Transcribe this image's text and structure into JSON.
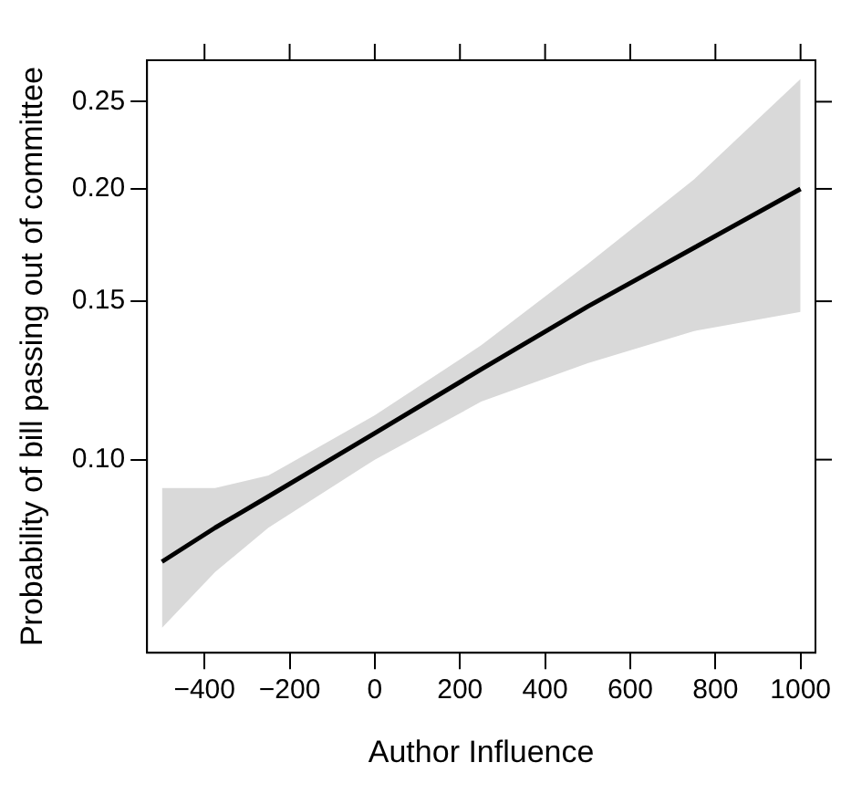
{
  "chart_data": {
    "type": "line",
    "xlabel": "Author Influence",
    "ylabel": "Probability of bill passing out of committee",
    "xlim": [
      -535,
      1035
    ],
    "ylim": [
      0.061,
      0.278
    ],
    "xticks": [
      {
        "value": -400,
        "label": "−400"
      },
      {
        "value": -200,
        "label": "−200"
      },
      0,
      200,
      400,
      600,
      800,
      1000
    ],
    "yticks": [
      {
        "value": 0.1,
        "label": "0.10"
      },
      {
        "value": 0.15,
        "label": "0.15"
      },
      {
        "value": 0.2,
        "label": "0.20"
      },
      {
        "value": 0.25,
        "label": "0.25"
      }
    ],
    "log": true,
    "grid": false,
    "legend": false,
    "marker": "none",
    "line_style": "solid",
    "series": [
      {
        "color": "#000000",
        "x": [
          -500,
          -375,
          -250,
          0,
          250,
          500,
          750,
          1000
        ],
        "values": [
          0.077,
          0.084,
          0.091,
          0.107,
          0.126,
          0.148,
          0.172,
          0.2
        ],
        "lower": [
          0.065,
          0.075,
          0.084,
          0.1,
          0.116,
          0.128,
          0.139,
          0.146
        ],
        "upper": [
          0.093,
          0.093,
          0.096,
          0.112,
          0.134,
          0.165,
          0.205,
          0.265
        ]
      }
    ]
  }
}
